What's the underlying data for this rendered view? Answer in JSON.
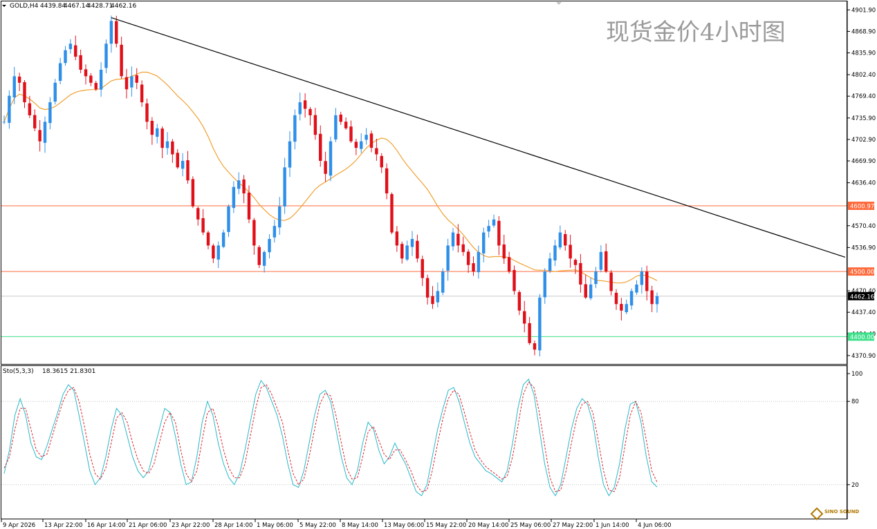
{
  "symbol_info": {
    "symbol": "GOLD,H4",
    "open": "4439.84",
    "high": "4467.14",
    "low": "4428.71",
    "close": "4462.16"
  },
  "watermark": "现货金价4小时图",
  "logo_text": "SINO SOUND",
  "colors": {
    "bull": "#2f8fe8",
    "bear": "#e0101a",
    "ma": "#f0a030",
    "trendline": "#000000",
    "resistance": "#ff6a3c",
    "support": "#3ee08a",
    "price_line": "#c8c8c8",
    "stoch_k": "#28b8c8",
    "stoch_d": "#e0202a",
    "grid": "#000000"
  },
  "chart_data": [
    {
      "type": "candlestick",
      "title": "GOLD,H4",
      "y_ticks": [
        "4901.90",
        "4868.90",
        "4835.90",
        "4802.40",
        "4769.40",
        "4735.90",
        "4702.90",
        "4669.90",
        "4636.40",
        "4570.40",
        "4536.90",
        "4470.40",
        "4437.40",
        "4404.40",
        "4370.90"
      ],
      "ylim": [
        4358,
        4915
      ],
      "x_labels": [
        "9 Apr 2026",
        "13 Apr 22:00",
        "16 Apr 14:00",
        "21 Apr 06:00",
        "23 Apr 22:00",
        "28 Apr 14:00",
        "1 May 06:00",
        "5 May 22:00",
        "8 May 14:00",
        "13 May 06:00",
        "15 May 22:00",
        "20 May 14:00",
        "25 May 06:00",
        "27 May 22:00",
        "1 Jun 14:00",
        "4 Jun 06:00"
      ],
      "moving_average_period_bars": 20,
      "candles_close": [
        4730,
        4770,
        4800,
        4790,
        4760,
        4740,
        4720,
        4700,
        4730,
        4760,
        4790,
        4820,
        4840,
        4850,
        4830,
        4810,
        4800,
        4790,
        4780,
        4810,
        4850,
        4885,
        4850,
        4800,
        4780,
        4800,
        4790,
        4760,
        4730,
        4710,
        4720,
        4690,
        4700,
        4680,
        4660,
        4670,
        4640,
        4600,
        4580,
        4560,
        4540,
        4520,
        4540,
        4560,
        4600,
        4630,
        4640,
        4620,
        4580,
        4540,
        4510,
        4530,
        4550,
        4570,
        4600,
        4660,
        4700,
        4740,
        4760,
        4750,
        4740,
        4710,
        4670,
        4650,
        4700,
        4740,
        4730,
        4720,
        4700,
        4690,
        4700,
        4710,
        4690,
        4680,
        4660,
        4620,
        4560,
        4540,
        4520,
        4540,
        4550,
        4520,
        4490,
        4460,
        4450,
        4470,
        4500,
        4540,
        4560,
        4540,
        4530,
        4510,
        4500,
        4530,
        4560,
        4570,
        4580,
        4540,
        4520,
        4500,
        4470,
        4440,
        4420,
        4390,
        4380,
        4460,
        4500,
        4520,
        4540,
        4560,
        4540,
        4520,
        4510,
        4480,
        4460,
        4480,
        4500,
        4530,
        4500,
        4470,
        4450,
        4440,
        4450,
        4470,
        4480,
        4500,
        4470,
        4450,
        4462.16
      ],
      "levels": [
        {
          "label": "4600.97",
          "value": 4600.97,
          "type": "resistance"
        },
        {
          "label": "4500.00",
          "value": 4500.0,
          "type": "resistance"
        },
        {
          "label": "4462.16",
          "value": 4462.16,
          "type": "current"
        },
        {
          "label": "4400.00",
          "value": 4400.0,
          "type": "support"
        }
      ],
      "trendline": {
        "from": {
          "bar": 21,
          "price": 4890
        },
        "to": {
          "bar": 166,
          "price": 4522
        }
      }
    },
    {
      "type": "line",
      "title": "Sto(5,3,3)",
      "values_label": "18.3615 21.8301",
      "y_ticks": [
        "100",
        "80",
        "20"
      ],
      "ylim": [
        0,
        100
      ],
      "series": [
        {
          "name": "%K",
          "values": [
            28,
            45,
            70,
            82,
            70,
            50,
            40,
            38,
            48,
            60,
            72,
            85,
            92,
            88,
            70,
            50,
            30,
            20,
            25,
            40,
            60,
            75,
            70,
            55,
            40,
            30,
            25,
            30,
            45,
            60,
            75,
            72,
            55,
            35,
            20,
            22,
            40,
            65,
            80,
            70,
            50,
            35,
            25,
            20,
            28,
            45,
            65,
            85,
            95,
            90,
            80,
            70,
            55,
            35,
            20,
            18,
            30,
            50,
            70,
            85,
            88,
            80,
            60,
            40,
            25,
            20,
            30,
            50,
            65,
            60,
            45,
            35,
            40,
            50,
            42,
            35,
            25,
            15,
            12,
            20,
            40,
            60,
            75,
            88,
            90,
            80,
            65,
            50,
            40,
            35,
            30,
            28,
            25,
            22,
            30,
            50,
            75,
            92,
            96,
            85,
            60,
            35,
            18,
            12,
            20,
            40,
            60,
            75,
            82,
            78,
            65,
            40,
            20,
            12,
            18,
            35,
            60,
            78,
            80,
            65,
            40,
            22,
            18.3615
          ]
        },
        {
          "name": "%D",
          "values": [
            32,
            40,
            60,
            75,
            75,
            60,
            45,
            40,
            42,
            55,
            68,
            80,
            88,
            90,
            80,
            62,
            42,
            28,
            24,
            32,
            50,
            68,
            72,
            65,
            50,
            38,
            30,
            28,
            35,
            50,
            65,
            72,
            65,
            45,
            28,
            22,
            30,
            52,
            72,
            75,
            62,
            45,
            32,
            25,
            25,
            35,
            55,
            75,
            90,
            92,
            85,
            75,
            65,
            45,
            28,
            20,
            24,
            40,
            60,
            78,
            86,
            84,
            70,
            50,
            32,
            24,
            25,
            40,
            58,
            62,
            52,
            42,
            38,
            45,
            45,
            38,
            30,
            20,
            15,
            16,
            30,
            50,
            68,
            82,
            88,
            85,
            72,
            58,
            45,
            38,
            33,
            30,
            27,
            24,
            26,
            40,
            62,
            85,
            94,
            90,
            72,
            48,
            25,
            15,
            16,
            30,
            50,
            68,
            78,
            80,
            72,
            52,
            30,
            16,
            15,
            25,
            48,
            70,
            80,
            72,
            52,
            30,
            21.8301
          ]
        }
      ],
      "level_lines": [
        80,
        20
      ]
    }
  ]
}
